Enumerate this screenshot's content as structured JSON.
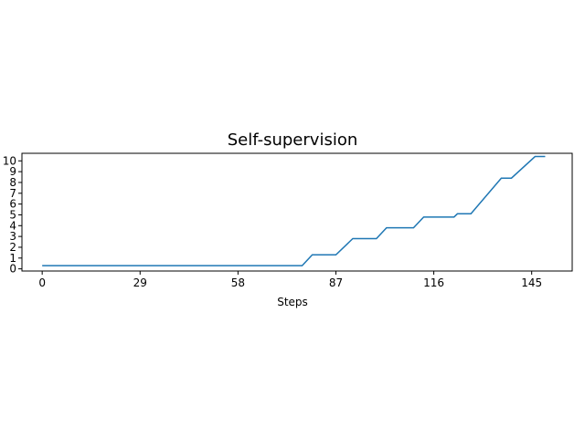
{
  "chart_data": {
    "type": "line",
    "title": "Self-supervision",
    "xlabel": "Steps",
    "ylabel": "",
    "xlim": [
      -6,
      157
    ],
    "ylim": [
      -0.2,
      10.7
    ],
    "xticks": [
      0,
      29,
      58,
      87,
      116,
      145
    ],
    "xtick_labels": [
      "0",
      "29",
      "58",
      "87",
      "116",
      "145"
    ],
    "ytick_labels": [
      "0",
      "1",
      "2",
      "3",
      "4",
      "5",
      "6",
      "7",
      "8",
      "9",
      "10"
    ],
    "grid": false,
    "legend": "none",
    "series": [
      {
        "color": "#1f77b4",
        "x": [
          0,
          77,
          80,
          87,
          92,
          99,
          102,
          110,
          113,
          122,
          123,
          127,
          136,
          139,
          146,
          149
        ],
        "y": [
          0.3,
          0.3,
          1.3,
          1.3,
          2.8,
          2.8,
          3.8,
          3.8,
          4.8,
          4.8,
          5.1,
          5.1,
          8.4,
          8.4,
          10.4,
          10.4
        ]
      }
    ]
  }
}
